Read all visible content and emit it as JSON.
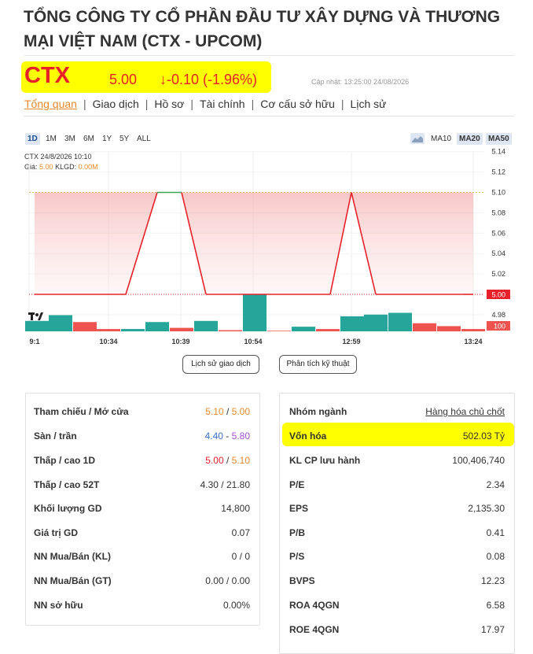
{
  "header": {
    "title": "TỔNG CÔNG TY CỔ PHẦN ĐẦU TƯ XÂY DỰNG VÀ THƯƠNG MẠI VIỆT NAM (CTX - UPCOM)",
    "ticker": "CTX",
    "price": "5.00",
    "change": "↓-0.10 (-1.96%)",
    "updated": "Cập nhật: 13:25:00 24/08/2026"
  },
  "tabs": [
    "Tổng quan",
    "Giao dịch",
    "Hồ sơ",
    "Tài chính",
    "Cơ cấu sở hữu",
    "Lịch sử"
  ],
  "chart_toolbar": {
    "timeframes": [
      "1D",
      "1M",
      "3M",
      "6M",
      "1Y",
      "5Y",
      "ALL"
    ],
    "active_timeframe": "1D",
    "indicators": [
      "MA10",
      "MA20",
      "MA50"
    ],
    "active_indicators": [
      "MA20",
      "MA50"
    ]
  },
  "chart_legend": {
    "line1": "CTX 24/8/2026 10:10",
    "price_label": "Giá:",
    "price_value": "5.00",
    "vol_label": "KLGD:",
    "vol_value": "0.00M"
  },
  "chart_data": {
    "type": "area",
    "y_ticks": [
      "5.14",
      "5.12",
      "5.10",
      "5.08",
      "5.06",
      "5.04",
      "5.02",
      "5.00",
      "4.98",
      "100"
    ],
    "ylim": [
      4.98,
      5.14
    ],
    "current_price_label": "5.00",
    "volume_label": "100",
    "x_tick_labels": [
      "9:1",
      "10:34",
      "10:39",
      "10:54",
      "12:59",
      "13:24"
    ],
    "price_series": [
      {
        "t": 0,
        "v": 5.0
      },
      {
        "t": 1,
        "v": 5.0
      },
      {
        "t": 2,
        "v": 5.0
      },
      {
        "t": 3,
        "v": 5.0
      },
      {
        "t": 4,
        "v": 5.1
      },
      {
        "t": 5,
        "v": 5.1
      },
      {
        "t": 6,
        "v": 5.0
      },
      {
        "t": 7,
        "v": 5.0
      },
      {
        "t": 8,
        "v": 5.0
      },
      {
        "t": 9,
        "v": 5.0
      },
      {
        "t": 10,
        "v": 5.0
      },
      {
        "t": 11,
        "v": 5.0
      },
      {
        "t": 12,
        "v": 5.1
      },
      {
        "t": 13,
        "v": 5.0
      },
      {
        "t": 14,
        "v": 5.0
      },
      {
        "t": 15,
        "v": 5.0
      },
      {
        "t": 16,
        "v": 5.0
      },
      {
        "t": 17,
        "v": 5.0
      }
    ],
    "volume_bars": [
      {
        "v": 18,
        "up": true
      },
      {
        "v": 28,
        "up": true
      },
      {
        "v": 16,
        "up": false
      },
      {
        "v": 4,
        "up": false
      },
      {
        "v": 4,
        "up": true
      },
      {
        "v": 16,
        "up": true
      },
      {
        "v": 6,
        "up": false
      },
      {
        "v": 18,
        "up": true
      },
      {
        "v": 2,
        "up": false
      },
      {
        "v": 64,
        "up": true
      },
      {
        "v": 1,
        "up": false
      },
      {
        "v": 8,
        "up": true
      },
      {
        "v": 4,
        "up": false
      },
      {
        "v": 26,
        "up": true
      },
      {
        "v": 29,
        "up": true
      },
      {
        "v": 32,
        "up": true
      },
      {
        "v": 14,
        "up": false
      },
      {
        "v": 9,
        "up": false
      },
      {
        "v": 4,
        "up": false
      }
    ],
    "reference_price": 5.1,
    "grid": true
  },
  "buttons": {
    "history": "Lịch sử giao dịch",
    "technical": "Phân tích kỹ thuật"
  },
  "left_table": [
    {
      "label": "Tham chiếu / Mở cửa",
      "v1": "5.10",
      "sep": " / ",
      "v2": "5.00",
      "c1": "orange",
      "c2": "orange"
    },
    {
      "label": "Sàn / trần",
      "v1": "4.40",
      "sep": " - ",
      "v2": "5.80",
      "c1": "blue",
      "c2": "purple"
    },
    {
      "label": "Thấp / cao 1D",
      "v1": "5.00",
      "sep": " / ",
      "v2": "5.10",
      "c1": "red",
      "c2": "orange"
    },
    {
      "label": "Thấp / cao 52T",
      "v1": "4.30 / 21.80",
      "sep": "",
      "v2": "",
      "c1": "",
      "c2": ""
    },
    {
      "label": "Khối lượng GD",
      "v1": "14,800",
      "sep": "",
      "v2": "",
      "c1": "",
      "c2": ""
    },
    {
      "label": "Giá trị GD",
      "v1": "0.07",
      "sep": "",
      "v2": "",
      "c1": "",
      "c2": ""
    },
    {
      "label": "NN Mua/Bán (KL)",
      "v1": "0 / 0",
      "sep": "",
      "v2": "",
      "c1": "",
      "c2": ""
    },
    {
      "label": "NN Mua/Bán (GT)",
      "v1": "0.00 / 0.00",
      "sep": "",
      "v2": "",
      "c1": "",
      "c2": ""
    },
    {
      "label": "NN sở hữu",
      "v1": "0.00%",
      "sep": "",
      "v2": "",
      "c1": "",
      "c2": ""
    }
  ],
  "right_table": [
    {
      "label": "Nhóm ngành",
      "value": "Hàng hóa chủ chốt",
      "link": true
    },
    {
      "label": "Vốn hóa",
      "value": "502.03 Tỷ",
      "link": false
    },
    {
      "label": "KL CP lưu hành",
      "value": "100,406,740",
      "link": false
    },
    {
      "label": "P/E",
      "value": "2.34",
      "link": false
    },
    {
      "label": "EPS",
      "value": "2,135.30",
      "link": false
    },
    {
      "label": "P/B",
      "value": "0.41",
      "link": false
    },
    {
      "label": "P/S",
      "value": "0.08",
      "link": false
    },
    {
      "label": "BVPS",
      "value": "12.23",
      "link": false
    },
    {
      "label": "ROA 4QGN",
      "value": "6.58",
      "link": false
    },
    {
      "label": "ROE 4QGN",
      "value": "17.97",
      "link": false
    }
  ],
  "colors": {
    "red": "#e8202a",
    "orange": "#e8892a",
    "teal": "#26a69a",
    "highlight": "#ffff00"
  }
}
